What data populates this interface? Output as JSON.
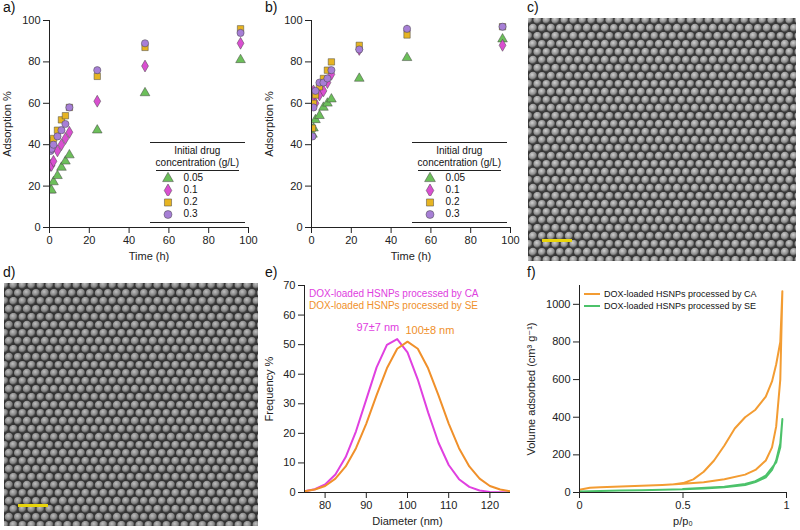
{
  "chart_data": [
    {
      "panel": "a)",
      "type": "scatter",
      "x_label": "Time (h)",
      "y_label": "Adsorption %",
      "x": [
        0.5,
        1,
        2,
        4,
        6,
        8,
        10,
        24,
        48,
        96
      ],
      "xlim": [
        0,
        100
      ],
      "xticks": [
        0,
        20,
        40,
        60,
        80,
        100
      ],
      "ylim": [
        0,
        100
      ],
      "yticks": [
        0,
        20,
        40,
        60,
        80,
        100
      ],
      "legend": "lower right",
      "legend_title": "Initial drug concentration (g/L)",
      "series": [
        {
          "name": "0.05",
          "color": "#6cbf5a",
          "marker": "triangle",
          "values": [
            18,
            18,
            22,
            25,
            29,
            32,
            35,
            47,
            65,
            81
          ]
        },
        {
          "name": "0.1",
          "color": "#d94fd0",
          "marker": "diamond",
          "values": [
            30,
            30,
            32,
            37,
            40,
            43,
            46,
            61,
            78,
            89
          ]
        },
        {
          "name": "0.2",
          "color": "#e6b422",
          "marker": "square",
          "values": [
            41,
            42,
            43,
            47,
            52,
            54,
            58,
            73,
            87,
            96
          ]
        },
        {
          "name": "0.3",
          "color": "#a77fd6",
          "marker": "circle",
          "values": [
            37,
            38,
            40,
            44,
            47,
            50,
            58,
            76,
            89,
            94
          ]
        }
      ]
    },
    {
      "panel": "b)",
      "type": "scatter",
      "x_label": "Time (h)",
      "y_label": "Adsorption %",
      "x": [
        0.5,
        1,
        2,
        4,
        6,
        8,
        10,
        24,
        48,
        96
      ],
      "xlim": [
        0,
        100
      ],
      "xticks": [
        0,
        20,
        40,
        60,
        80,
        100
      ],
      "ylim": [
        0,
        100
      ],
      "yticks": [
        0,
        20,
        40,
        60,
        80,
        100
      ],
      "legend": "lower right",
      "legend_title": "Initial drug concentration (g/L)",
      "series": [
        {
          "name": "0.05",
          "color": "#6cbf5a",
          "marker": "triangle",
          "values": [
            45,
            48,
            52,
            54,
            58,
            60,
            62,
            72,
            82,
            91
          ]
        },
        {
          "name": "0.1",
          "color": "#d94fd0",
          "marker": "diamond",
          "values": [
            62,
            66,
            60,
            64,
            66,
            70,
            74,
            86,
            95,
            88
          ]
        },
        {
          "name": "0.2",
          "color": "#e6b422",
          "marker": "square",
          "values": [
            48,
            60,
            64,
            68,
            72,
            76,
            80,
            88,
            93,
            97
          ]
        },
        {
          "name": "0.3",
          "color": "#a77fd6",
          "marker": "circle",
          "values": [
            44,
            58,
            66,
            70,
            70,
            72,
            76,
            86,
            96,
            97
          ]
        }
      ]
    },
    {
      "panel": "e)",
      "type": "line",
      "x_label": "Diameter (nm)",
      "y_label": "Frequency %",
      "x": [
        75,
        77.5,
        80,
        82.5,
        85,
        87.5,
        90,
        92.5,
        95,
        97.5,
        100,
        102.5,
        105,
        107.5,
        110,
        112.5,
        115,
        117.5,
        120,
        122.5,
        125
      ],
      "xlim": [
        75,
        125
      ],
      "xticks": [
        80,
        90,
        100,
        110,
        120
      ],
      "ylim": [
        0,
        70
      ],
      "yticks": [
        0,
        10,
        20,
        30,
        40,
        50,
        60,
        70
      ],
      "legend": "upper left",
      "series": [
        {
          "name": "DOX-loaded HSNPs processed by CA",
          "color": "#e040e0",
          "values": [
            0.4,
            1.1,
            2.7,
            6.1,
            12.0,
            20.7,
            31.5,
            42.3,
            49.9,
            51.9,
            47.4,
            38.2,
            27.1,
            16.9,
            9.3,
            4.5,
            1.9,
            0.7,
            0.2,
            0.1,
            0
          ]
        },
        {
          "name": "DOX-loaded HSNPs processed by SE",
          "color": "#f0902a",
          "values": [
            0.4,
            1.0,
            2.2,
            4.7,
            8.8,
            15.0,
            23.3,
            32.9,
            42.0,
            48.6,
            51,
            48.6,
            42.0,
            32.9,
            23.3,
            15.0,
            8.8,
            4.7,
            2.2,
            1.0,
            0.4
          ]
        }
      ],
      "annotations": [
        {
          "text": "97±7 nm",
          "series": "DOX-loaded HSNPs processed by CA"
        },
        {
          "text": "100±8 nm",
          "series": "DOX-loaded HSNPs processed by SE"
        }
      ]
    },
    {
      "panel": "f)",
      "type": "line",
      "x_label": "p/p₀",
      "y_label": "Volume adsorbed (cm³ g⁻¹)",
      "xlim": [
        0,
        1
      ],
      "xticks": [
        0,
        0.5,
        1
      ],
      "ylim": [
        0,
        1100
      ],
      "yticks": [
        0,
        200,
        400,
        600,
        800,
        1000
      ],
      "legend": "upper left",
      "series": [
        {
          "name": "DOX-loaded HSNPs processed by CA",
          "color": "#f39c32",
          "x": [
            0,
            0.05,
            0.1,
            0.2,
            0.3,
            0.4,
            0.5,
            0.6,
            0.7,
            0.8,
            0.85,
            0.9,
            0.93,
            0.95,
            0.97,
            0.98,
            0.97,
            0.95,
            0.93,
            0.9,
            0.85,
            0.8,
            0.75,
            0.7,
            0.65,
            0.6,
            0.55,
            0.5,
            0.45
          ],
          "values": [
            15,
            25,
            28,
            32,
            36,
            40,
            46,
            55,
            70,
            95,
            120,
            170,
            240,
            350,
            600,
            1070,
            800,
            680,
            590,
            510,
            440,
            400,
            340,
            250,
            170,
            110,
            70,
            50,
            42
          ]
        },
        {
          "name": "DOX-loaded HSNPs processed by SE",
          "color": "#4cc26a",
          "x": [
            0,
            0.1,
            0.2,
            0.3,
            0.4,
            0.5,
            0.6,
            0.7,
            0.8,
            0.85,
            0.9,
            0.93,
            0.95,
            0.97,
            0.98,
            0.97,
            0.95,
            0.9,
            0.85,
            0.8,
            0.7,
            0.5
          ],
          "values": [
            5,
            8,
            10,
            12,
            14,
            17,
            21,
            28,
            40,
            55,
            80,
            120,
            170,
            260,
            390,
            240,
            160,
            90,
            60,
            45,
            30,
            18
          ]
        }
      ]
    }
  ],
  "images": [
    {
      "panel": "c)",
      "type": "image"
    },
    {
      "panel": "d)",
      "type": "image"
    }
  ]
}
